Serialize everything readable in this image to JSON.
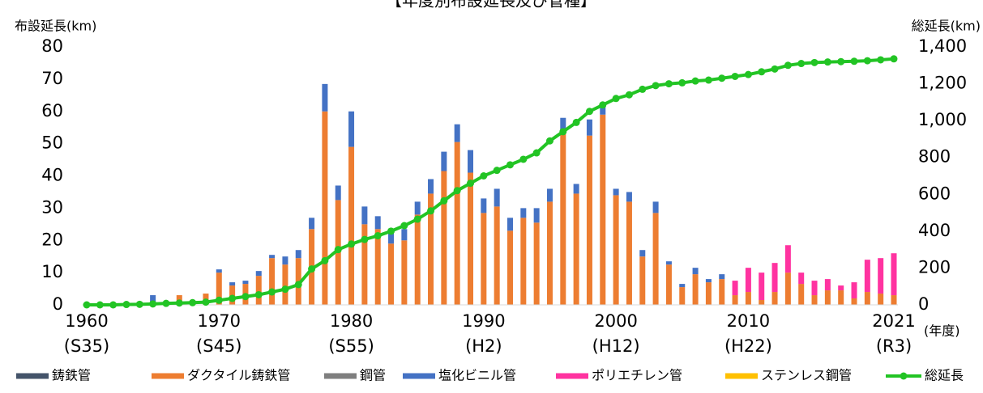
{
  "chart_data": {
    "type": "bar",
    "stacked": true,
    "title": "【年度別布設延長及び管種】",
    "y_label": "布設延長(km)",
    "y2_label": "総延長(km)",
    "x_label": "(年度)",
    "x": [
      1960,
      1961,
      1962,
      1963,
      1964,
      1965,
      1966,
      1967,
      1968,
      1969,
      1970,
      1971,
      1972,
      1973,
      1974,
      1975,
      1976,
      1977,
      1978,
      1979,
      1980,
      1981,
      1982,
      1983,
      1984,
      1985,
      1986,
      1987,
      1988,
      1989,
      1990,
      1991,
      1992,
      1993,
      1994,
      1995,
      1996,
      1997,
      1998,
      1999,
      2000,
      2001,
      2002,
      2003,
      2004,
      2005,
      2006,
      2007,
      2008,
      2009,
      2010,
      2011,
      2012,
      2013,
      2014,
      2015,
      2016,
      2017,
      2018,
      2019,
      2020,
      2021
    ],
    "xlim": [
      1960,
      2021
    ],
    "xticks": [
      1960,
      1970,
      1980,
      1990,
      2000,
      2010,
      2021
    ],
    "xtick_sublabels": [
      "(S35)",
      "(S45)",
      "(S55)",
      "(H2)",
      "(H12)",
      "(H22)",
      "(R3)"
    ],
    "ylim": [
      0,
      80
    ],
    "yticks": [
      0,
      10,
      20,
      30,
      40,
      50,
      60,
      70,
      80
    ],
    "y2lim": [
      0,
      1400
    ],
    "y2ticks": [
      0,
      200,
      400,
      600,
      800,
      {
        "value": 1000,
        "label": "1,000"
      },
      {
        "value": 1200,
        "label": "1,200"
      },
      {
        "value": 1400,
        "label": "1,400"
      }
    ],
    "series": [
      {
        "name": "鋳鉄管",
        "color": "#44546a",
        "values": [
          0,
          0,
          0,
          0,
          0,
          0,
          0,
          0,
          0,
          0,
          0,
          0,
          0,
          0,
          0,
          0,
          0,
          0,
          0,
          0,
          0,
          0,
          0,
          0,
          0,
          0,
          0,
          0,
          0,
          0,
          0,
          0,
          0,
          0,
          0,
          0,
          0,
          0,
          0,
          0,
          0,
          0,
          0,
          0,
          0,
          0,
          0,
          0,
          0,
          0,
          0,
          0,
          0,
          0,
          0,
          0,
          0,
          0,
          0,
          0,
          0,
          0
        ]
      },
      {
        "name": "ダクタイル鋳鉄管",
        "color": "#ed7d31",
        "values": [
          0,
          0,
          0,
          0,
          0,
          0.5,
          0,
          3,
          0,
          3.5,
          10,
          6,
          6.5,
          9,
          14.5,
          12.5,
          14.5,
          23.5,
          60,
          32.5,
          49,
          25,
          23.5,
          19,
          20,
          28,
          34.5,
          41.5,
          50.5,
          41,
          28.5,
          30.5,
          23,
          27,
          25.5,
          32,
          54,
          34.5,
          52.5,
          59,
          34,
          32,
          15,
          28.5,
          12.5,
          5.5,
          9.5,
          7,
          8,
          3,
          4,
          1.5,
          4,
          10,
          6.5,
          3,
          4.5,
          4.5,
          2,
          4,
          3.5,
          3
        ]
      },
      {
        "name": "鋼管",
        "color": "#7f7f7f",
        "values": [
          0,
          0,
          0,
          0,
          0,
          0,
          0,
          0,
          0,
          0,
          0,
          0,
          0,
          0,
          0,
          0,
          0,
          0,
          0,
          0,
          0,
          0,
          0,
          0,
          0,
          0,
          0,
          0,
          0,
          0,
          0,
          0,
          0,
          0,
          0,
          0,
          0,
          0,
          0,
          0,
          0,
          0,
          0,
          0,
          0,
          0,
          0,
          0,
          0,
          0,
          0,
          0,
          0,
          0,
          0,
          0,
          0,
          0,
          0,
          0,
          0,
          0
        ]
      },
      {
        "name": "塩化ビニル管",
        "color": "#4472c4",
        "values": [
          0,
          0,
          0,
          0,
          0,
          2.5,
          0,
          0,
          0,
          0,
          1,
          1,
          1,
          1.5,
          1,
          2.5,
          2.5,
          3.5,
          8.5,
          4.5,
          11,
          5.5,
          4,
          3.5,
          3.5,
          4,
          4.5,
          6,
          5.5,
          7,
          4.5,
          5.5,
          4,
          3,
          4.5,
          4,
          4,
          3,
          5,
          2.5,
          2,
          3,
          2,
          3.5,
          1,
          1,
          2,
          1,
          1.5,
          0,
          0,
          0,
          0,
          0,
          0,
          0,
          0,
          0,
          0,
          0,
          0,
          0
        ]
      },
      {
        "name": "ポリエチレン管",
        "color": "#ff33a0",
        "values": [
          0,
          0,
          0,
          0,
          0,
          0,
          0,
          0,
          0,
          0,
          0,
          0,
          0,
          0,
          0,
          0,
          0,
          0,
          0,
          0,
          0,
          0,
          0,
          0,
          0,
          0,
          0,
          0,
          0,
          0,
          0,
          0,
          0,
          0,
          0,
          0,
          0,
          0,
          0,
          0,
          0,
          0,
          0,
          0,
          0,
          0,
          0,
          0,
          0,
          4.5,
          7.5,
          8.5,
          9,
          8.5,
          3.5,
          4.5,
          3.5,
          1.5,
          5,
          10,
          11,
          13
        ]
      },
      {
        "name": "ステンレス鋼管",
        "color": "#ffc000",
        "values": [
          0,
          0,
          0,
          0,
          0,
          0,
          0,
          0,
          0,
          0,
          0,
          0,
          0,
          0,
          0,
          0,
          0,
          0,
          0,
          0,
          0,
          0,
          0,
          0,
          0,
          0,
          0,
          0,
          0,
          0,
          0,
          0,
          0,
          0,
          0,
          0,
          0,
          0,
          0,
          0,
          0,
          0,
          0,
          0,
          0,
          0,
          0,
          0,
          0,
          0,
          0,
          0,
          0,
          0,
          0,
          0,
          0,
          0,
          0,
          0,
          0,
          0
        ]
      },
      {
        "name": "総延長",
        "color": "#22c424",
        "type": "line",
        "axis": "y2",
        "values": [
          0,
          0,
          0,
          2,
          3,
          5,
          8,
          10,
          12,
          15,
          25,
          35,
          45,
          55,
          70,
          85,
          110,
          195,
          240,
          300,
          330,
          355,
          375,
          400,
          430,
          465,
          510,
          565,
          620,
          660,
          700,
          730,
          760,
          790,
          825,
          890,
          940,
          990,
          1050,
          1085,
          1120,
          1140,
          1170,
          1190,
          1200,
          1205,
          1215,
          1220,
          1230,
          1240,
          1250,
          1265,
          1280,
          1300,
          1310,
          1315,
          1318,
          1320,
          1322,
          1325,
          1330,
          1335
        ]
      }
    ]
  }
}
